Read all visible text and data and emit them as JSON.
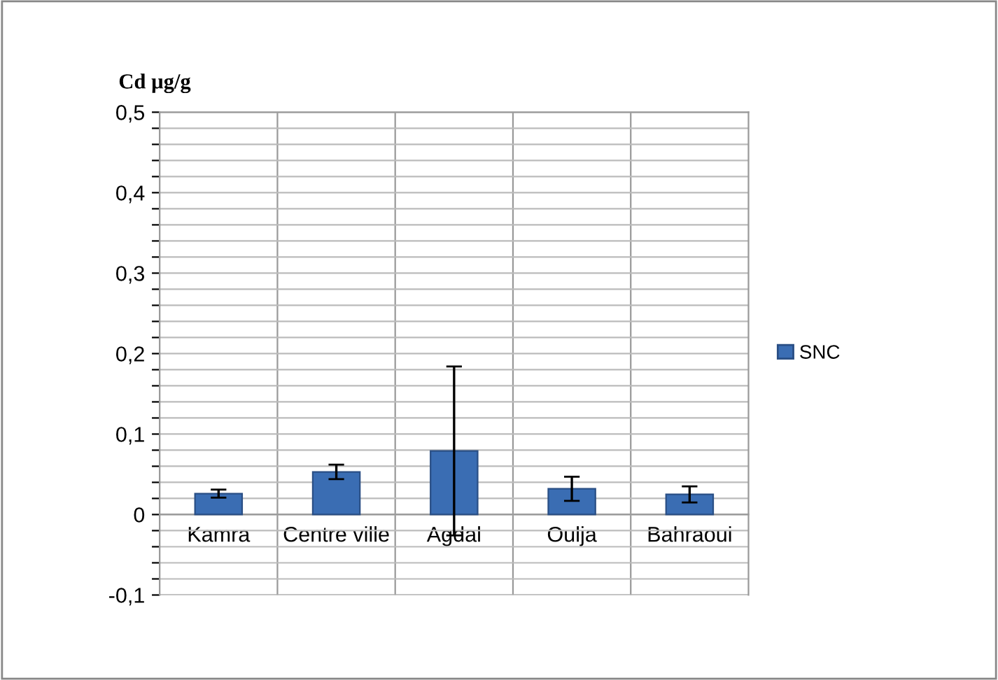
{
  "chart_data": {
    "type": "bar",
    "ylabel": "Cd µg/g",
    "categories": [
      "Kamra",
      "Centre ville",
      "Agdal",
      "Oulja",
      "Bahraoui"
    ],
    "series": [
      {
        "name": "SNC",
        "color": "#3a6db3",
        "values": [
          0.026,
          0.053,
          0.079,
          0.032,
          0.025
        ],
        "errors": [
          0.005,
          0.009,
          0.105,
          0.015,
          0.01
        ]
      }
    ],
    "ylim": [
      -0.1,
      0.5
    ],
    "yticks": [
      {
        "value": -0.1,
        "label": "-0,1"
      },
      {
        "value": -0.08,
        "label": null
      },
      {
        "value": -0.06,
        "label": null
      },
      {
        "value": -0.04,
        "label": null
      },
      {
        "value": -0.02,
        "label": null
      },
      {
        "value": 0,
        "label": "0"
      },
      {
        "value": 0.02,
        "label": null
      },
      {
        "value": 0.04,
        "label": null
      },
      {
        "value": 0.06,
        "label": null
      },
      {
        "value": 0.08,
        "label": null
      },
      {
        "value": 0.1,
        "label": "0,1"
      },
      {
        "value": 0.12,
        "label": null
      },
      {
        "value": 0.14,
        "label": null
      },
      {
        "value": 0.16,
        "label": null
      },
      {
        "value": 0.18,
        "label": null
      },
      {
        "value": 0.2,
        "label": "0,2"
      },
      {
        "value": 0.22,
        "label": null
      },
      {
        "value": 0.24,
        "label": null
      },
      {
        "value": 0.26,
        "label": null
      },
      {
        "value": 0.28,
        "label": null
      },
      {
        "value": 0.3,
        "label": "0,3"
      },
      {
        "value": 0.32,
        "label": null
      },
      {
        "value": 0.34,
        "label": null
      },
      {
        "value": 0.36,
        "label": null
      },
      {
        "value": 0.38,
        "label": null
      },
      {
        "value": 0.4,
        "label": "0,4"
      },
      {
        "value": 0.42,
        "label": null
      },
      {
        "value": 0.44,
        "label": null
      },
      {
        "value": 0.46,
        "label": null
      },
      {
        "value": 0.48,
        "label": null
      },
      {
        "value": 0.5,
        "label": "0,5"
      }
    ],
    "grid": true,
    "legend": "right"
  }
}
